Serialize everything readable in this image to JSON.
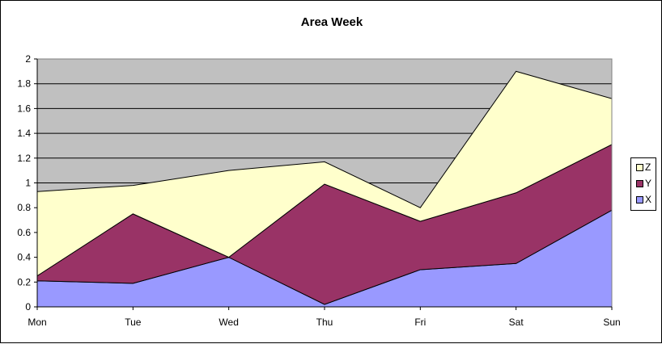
{
  "chart_data": {
    "type": "area",
    "stacked": true,
    "title": "Area Week",
    "xlabel": "",
    "ylabel": "",
    "categories": [
      "Mon",
      "Tue",
      "Wed",
      "Thu",
      "Fri",
      "Sat",
      "Sun"
    ],
    "ylim": [
      0,
      2
    ],
    "yticks": [
      "0",
      "0.2",
      "0.4",
      "0.6",
      "0.8",
      "1",
      "1.2",
      "1.4",
      "1.6",
      "1.8",
      "2"
    ],
    "grid": true,
    "plot_background": "#c0c0c0",
    "legend_position": "right",
    "series": [
      {
        "name": "X",
        "color": "#9999ff",
        "values": [
          0.21,
          0.19,
          0.4,
          0.02,
          0.3,
          0.35,
          0.78
        ]
      },
      {
        "name": "Y",
        "color": "#993366",
        "values": [
          0.04,
          0.56,
          0.0,
          0.97,
          0.39,
          0.57,
          0.53
        ]
      },
      {
        "name": "Z",
        "color": "#ffffcc",
        "values": [
          0.68,
          0.23,
          0.7,
          0.18,
          0.11,
          0.98,
          0.37
        ]
      }
    ]
  }
}
